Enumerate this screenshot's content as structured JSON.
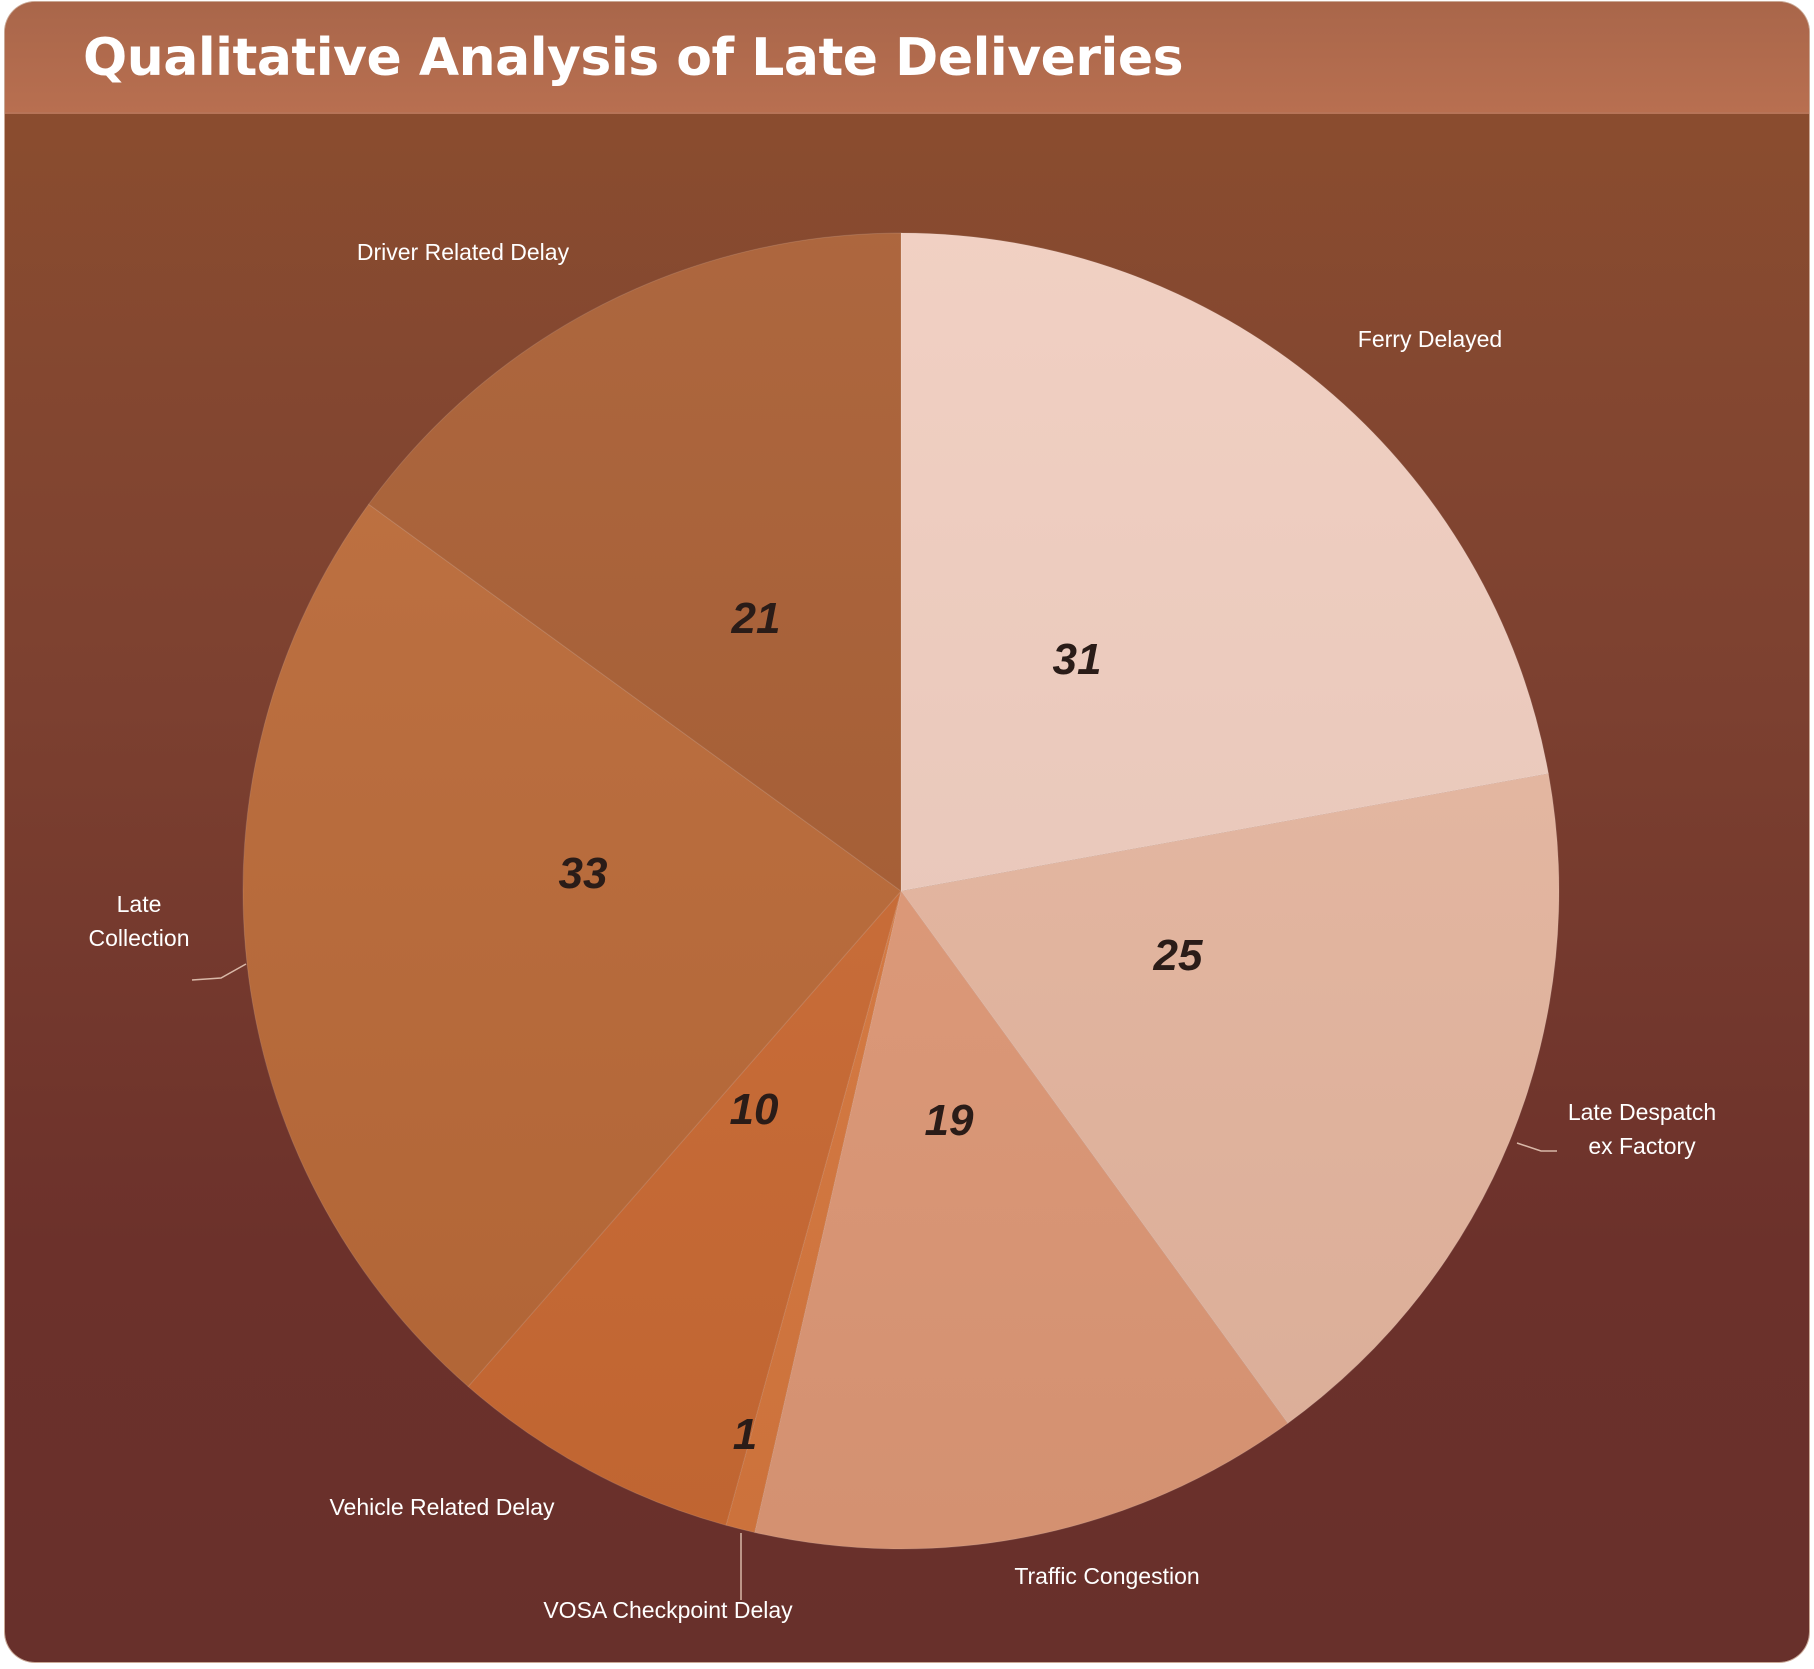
{
  "chart_data": {
    "type": "pie",
    "title": "Qualitative Analysis of Late Deliveries",
    "start_angle_deg": 0,
    "direction": "clockwise",
    "slices": [
      {
        "label": "Ferry Delayed",
        "value": 31,
        "color": "#f0cdbf"
      },
      {
        "label": "Late Despatch ex Factory",
        "value": 25,
        "color": "#e8b8a1"
      },
      {
        "label": "Traffic Congestion",
        "value": 19,
        "color": "#e19a78"
      },
      {
        "label": "VOSA Checkpoint Delay",
        "value": 1,
        "color": "#d9793f"
      },
      {
        "label": "Vehicle Related Delay",
        "value": 10,
        "color": "#cc6b34"
      },
      {
        "label": "Late Collection",
        "value": 33,
        "color": "#bb6a38"
      },
      {
        "label": "Driver Related Delay",
        "value": 21,
        "color": "#a85d32"
      }
    ]
  }
}
